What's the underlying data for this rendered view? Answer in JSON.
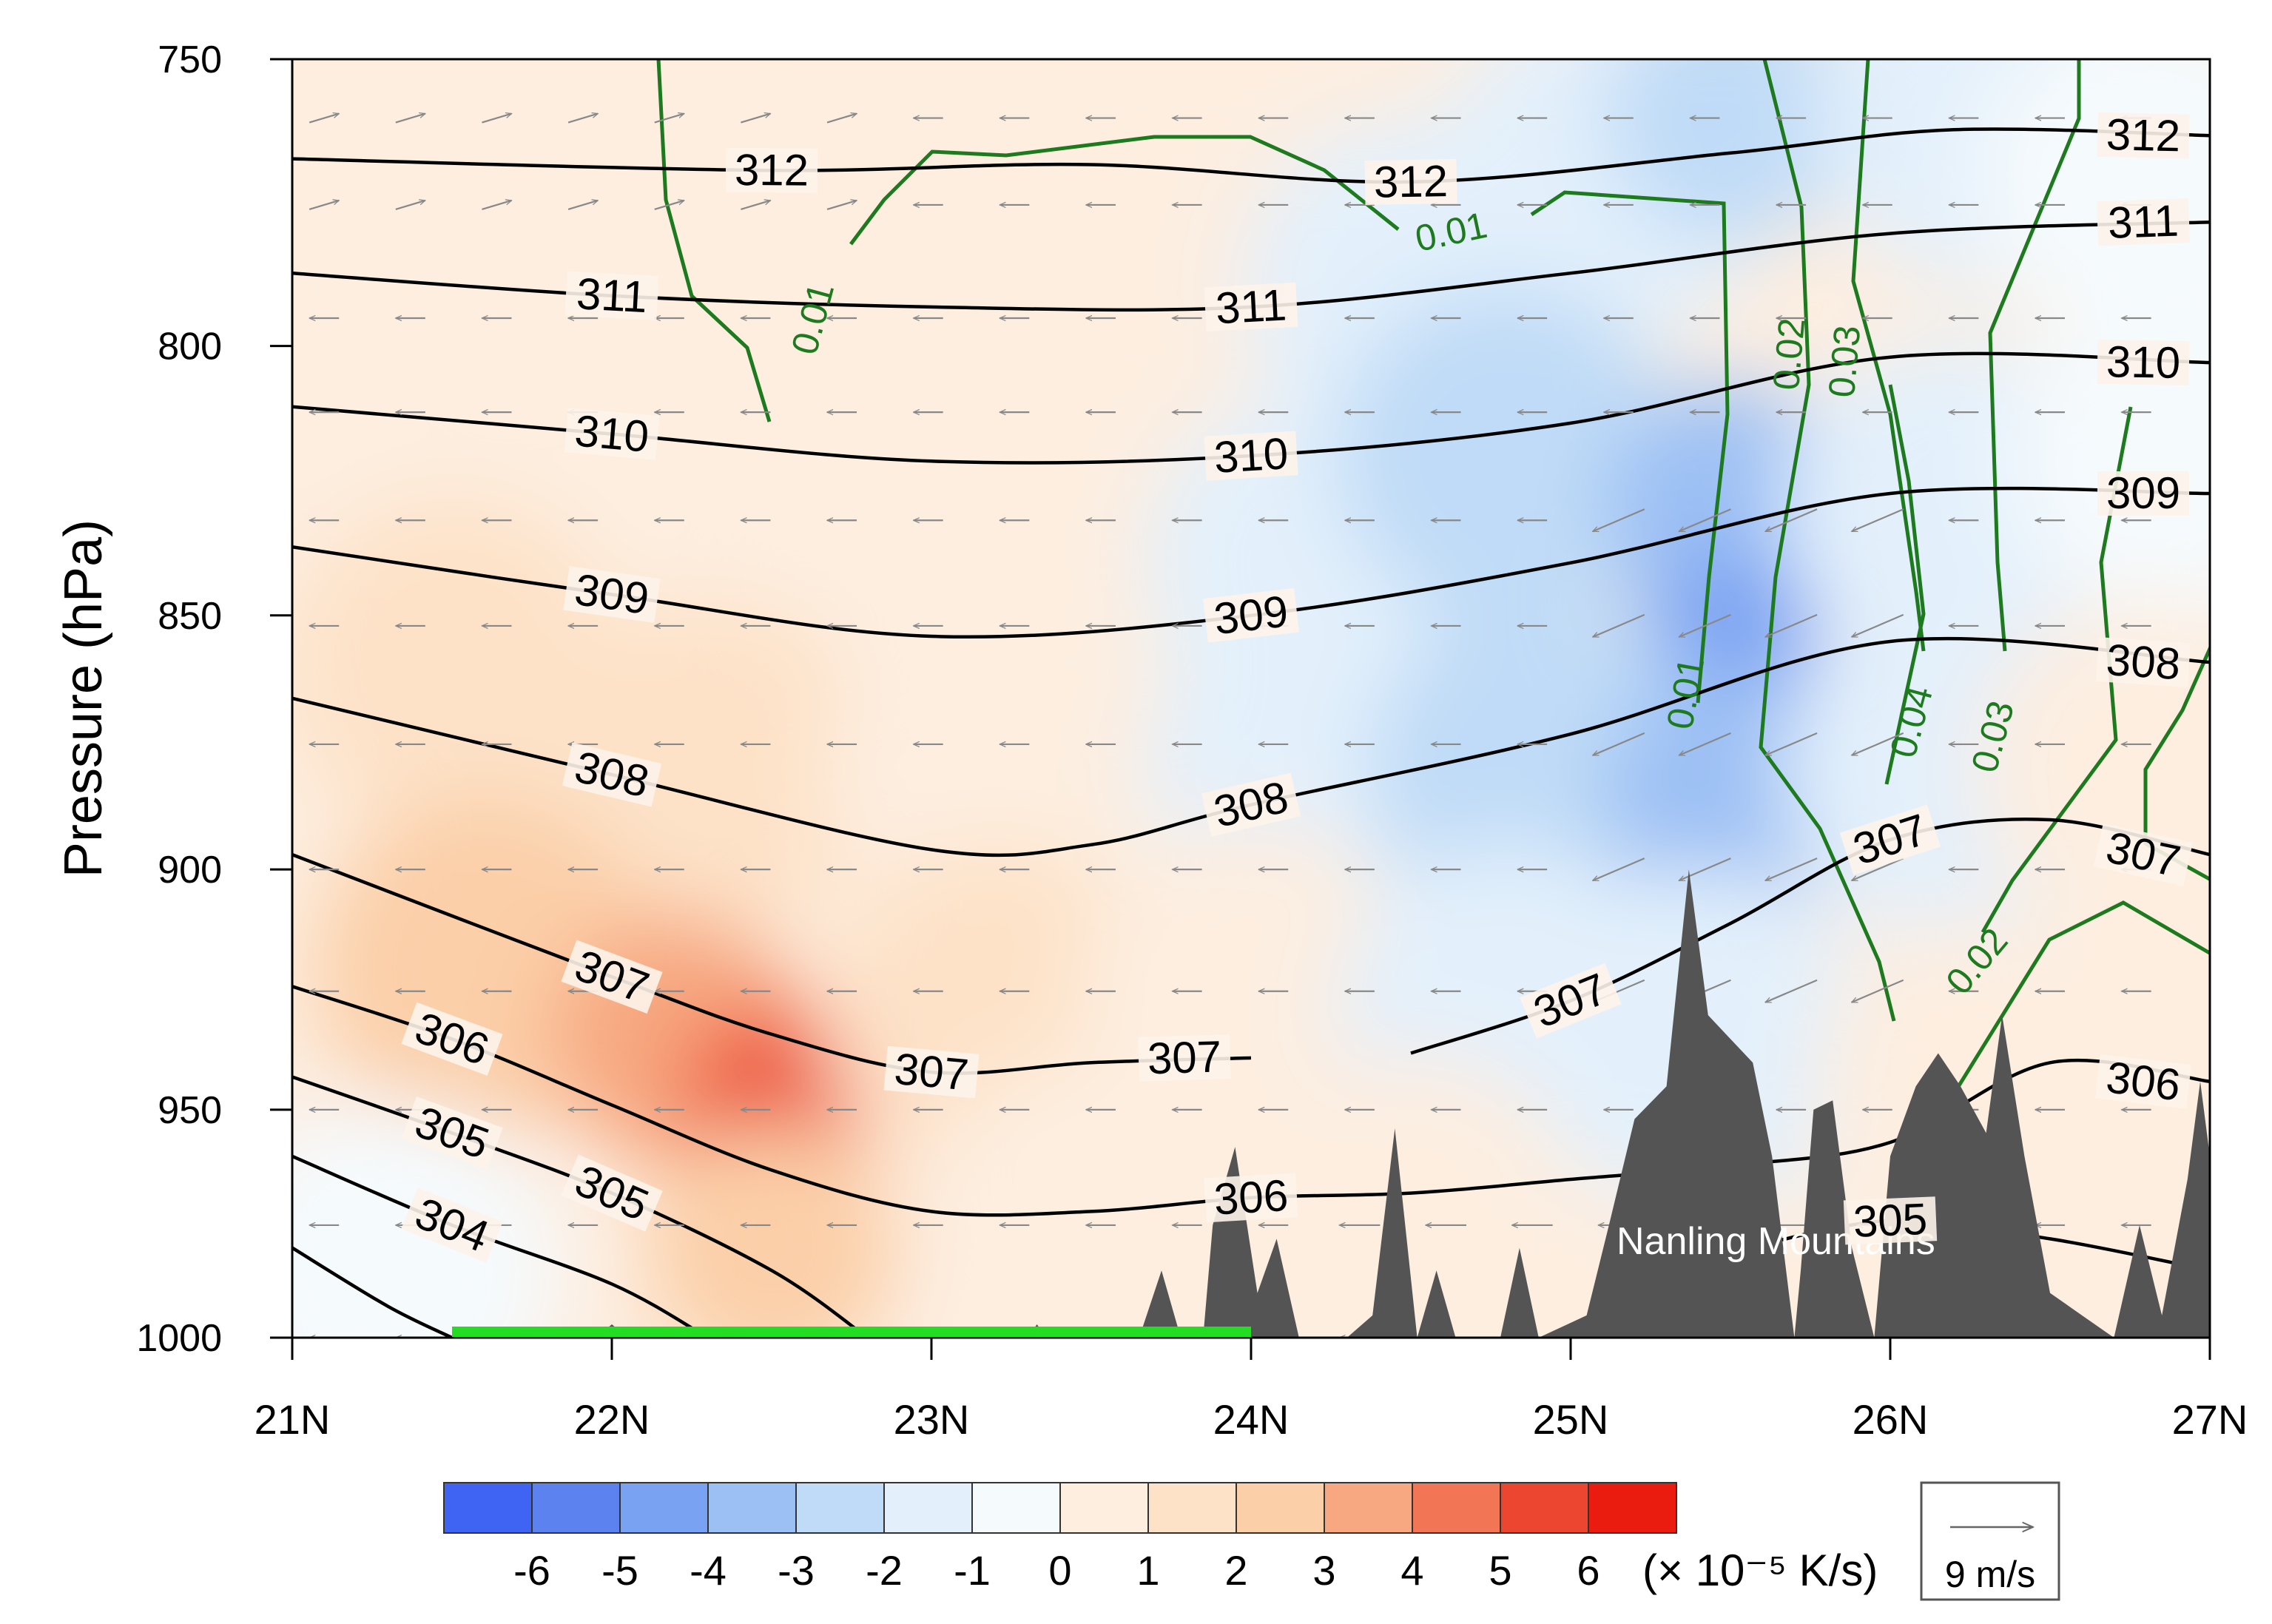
{
  "chart_data": {
    "type": "contour",
    "ylabel": "Pressure (hPa)",
    "x_ticks": [
      "21N",
      "22N",
      "23N",
      "24N",
      "25N",
      "26N",
      "27N"
    ],
    "y_ticks": [
      "750",
      "800",
      "850",
      "900",
      "950",
      "1000"
    ],
    "xlim": [
      21,
      27
    ],
    "ylim": [
      1000,
      750
    ],
    "y_scale": "log-pressure",
    "shading": {
      "levels": [
        -6,
        -5,
        -4,
        -3,
        -2,
        -1,
        0,
        1,
        2,
        3,
        4,
        5,
        6
      ],
      "level_labels": [
        "-6",
        "-5",
        "-4",
        "-3",
        "-2",
        "-1",
        "0",
        "1",
        "2",
        "3",
        "4",
        "5",
        "6"
      ],
      "unit_label": "(× 10⁻⁵ K/s)",
      "colors": [
        "#3f63f2",
        "#5c82f0",
        "#7aa2f2",
        "#9cc0f4",
        "#c0dbf7",
        "#e3f0fb",
        "#f5fafd",
        "#fdeee0",
        "#fde2c8",
        "#fbcfa8",
        "#f7a880",
        "#f27656",
        "#ec4530",
        "#ea1c10"
      ],
      "cells": [
        {
          "lat": 21.2,
          "p": 760,
          "v": 0.8
        },
        {
          "lat": 22.0,
          "p": 760,
          "v": 0.9
        },
        {
          "lat": 23.0,
          "p": 760,
          "v": 0.6
        },
        {
          "lat": 23.8,
          "p": 780,
          "v": 0.3
        },
        {
          "lat": 24.5,
          "p": 790,
          "v": -1.5
        },
        {
          "lat": 25.1,
          "p": 770,
          "v": -1.8
        },
        {
          "lat": 25.5,
          "p": 760,
          "v": -2.6
        },
        {
          "lat": 26.3,
          "p": 760,
          "v": -1.3
        },
        {
          "lat": 26.8,
          "p": 770,
          "v": -0.6
        },
        {
          "lat": 21.2,
          "p": 820,
          "v": 0.9
        },
        {
          "lat": 22.0,
          "p": 830,
          "v": 0.9
        },
        {
          "lat": 23.0,
          "p": 820,
          "v": 0.7
        },
        {
          "lat": 24.2,
          "p": 840,
          "v": -1.2
        },
        {
          "lat": 24.8,
          "p": 820,
          "v": -2.2
        },
        {
          "lat": 25.5,
          "p": 830,
          "v": -3.6
        },
        {
          "lat": 25.5,
          "p": 855,
          "v": -4.4
        },
        {
          "lat": 26.2,
          "p": 830,
          "v": -1.6
        },
        {
          "lat": 26.9,
          "p": 820,
          "v": -0.7
        },
        {
          "lat": 21.5,
          "p": 860,
          "v": 1.6
        },
        {
          "lat": 22.3,
          "p": 880,
          "v": 1.4
        },
        {
          "lat": 23.2,
          "p": 880,
          "v": 0.6
        },
        {
          "lat": 24.2,
          "p": 880,
          "v": -1.4
        },
        {
          "lat": 24.9,
          "p": 880,
          "v": -2.4
        },
        {
          "lat": 25.5,
          "p": 885,
          "v": -3.4
        },
        {
          "lat": 26.2,
          "p": 880,
          "v": -1.2
        },
        {
          "lat": 26.8,
          "p": 880,
          "v": 0.6
        },
        {
          "lat": 21.6,
          "p": 920,
          "v": 2.4
        },
        {
          "lat": 22.2,
          "p": 935,
          "v": 3.6
        },
        {
          "lat": 22.5,
          "p": 945,
          "v": 4.6
        },
        {
          "lat": 22.5,
          "p": 955,
          "v": 5.6
        },
        {
          "lat": 23.2,
          "p": 930,
          "v": 1.7
        },
        {
          "lat": 24.0,
          "p": 925,
          "v": 0.3
        },
        {
          "lat": 24.8,
          "p": 930,
          "v": -1.1
        },
        {
          "lat": 25.4,
          "p": 935,
          "v": -1.6
        },
        {
          "lat": 26.3,
          "p": 945,
          "v": 0.4
        },
        {
          "lat": 26.9,
          "p": 950,
          "v": 0.6
        },
        {
          "lat": 21.3,
          "p": 985,
          "v": -0.6
        },
        {
          "lat": 22.5,
          "p": 980,
          "v": 2.7
        },
        {
          "lat": 23.5,
          "p": 975,
          "v": 0.6
        },
        {
          "lat": 24.5,
          "p": 975,
          "v": 0.3
        }
      ]
    },
    "theta_contours": [
      {
        "label": "312",
        "x": [
          21.0,
          22.5,
          23.5,
          24.5,
          25.5,
          26.2,
          27.0
        ],
        "p": [
          767,
          769,
          768,
          771,
          766,
          762,
          763
        ]
      },
      {
        "label": "311",
        "x": [
          21.0,
          22.0,
          23.0,
          24.0,
          25.0,
          26.0,
          27.0
        ],
        "p": [
          787,
          791,
          793,
          793,
          787,
          780,
          778
        ]
      },
      {
        "label": "310",
        "x": [
          21.0,
          22.0,
          23.0,
          24.0,
          25.0,
          26.0,
          27.0
        ],
        "p": [
          811,
          816,
          821,
          820,
          814,
          802,
          803
        ]
      },
      {
        "label": "309",
        "x": [
          21.0,
          22.0,
          23.0,
          24.0,
          25.0,
          26.0,
          27.0
        ],
        "p": [
          837,
          846,
          854,
          850,
          840,
          827,
          827
        ]
      },
      {
        "label": "308",
        "x": [
          21.0,
          22.0,
          23.0,
          23.5,
          24.0,
          25.0,
          26.0,
          27.0
        ],
        "p": [
          866,
          881,
          896,
          895,
          887,
          873,
          855,
          859
        ]
      },
      {
        "label": "307",
        "x": [
          24.5,
          25.0,
          25.5,
          26.0,
          26.5,
          27.0
        ],
        "p": [
          938,
          927,
          911,
          894,
          890,
          897
        ]
      },
      {
        "label": "307",
        "x": [
          21.0,
          22.0,
          22.5,
          23.0,
          23.5,
          24.0
        ],
        "p": [
          897,
          922,
          934,
          942,
          940,
          939
        ]
      },
      {
        "label": "306",
        "x": [
          21.0,
          21.5,
          22.0,
          22.5,
          23.0,
          23.5,
          24.0,
          24.5,
          25.0,
          25.5,
          26.0,
          26.5,
          27.0
        ],
        "p": [
          924,
          935,
          949,
          963,
          972,
          972,
          969,
          968,
          965,
          962,
          957,
          940,
          944
        ]
      },
      {
        "label": "305",
        "x": [
          21.0,
          21.5,
          22.0,
          22.5,
          22.8
        ],
        "p": [
          943,
          955,
          968,
          985,
          1000
        ]
      },
      {
        "label": "305",
        "x": [
          25.5,
          26.0,
          26.5,
          27.0
        ],
        "p": [
          981,
          974,
          978,
          985
        ]
      },
      {
        "label": "304",
        "x": [
          21.0,
          21.5,
          22.0,
          22.3
        ],
        "p": [
          960,
          975,
          988,
          1000
        ]
      },
      {
        "label": "",
        "x": [
          21.0,
          21.3,
          21.5
        ],
        "p": [
          980,
          993,
          1000
        ]
      }
    ],
    "green_contour_labels": [
      "0.01",
      "0.01",
      "0.01",
      "0.02",
      "0.03",
      "0.04",
      "0.03",
      "0.02"
    ],
    "wind_reference": "9 m/s",
    "terrain_label": "Nanling Mountains",
    "highlight_bar": {
      "x_start": 21.5,
      "x_end": 24.0,
      "color": "#22dd22"
    }
  }
}
